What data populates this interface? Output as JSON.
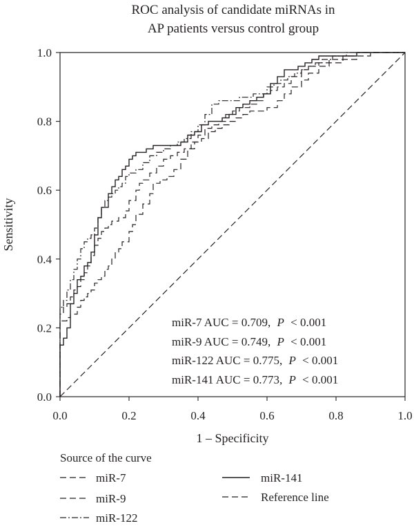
{
  "chart_data": {
    "type": "line",
    "title_lines": [
      "ROC analysis of candidate miRNAs in",
      "AP patients versus control group"
    ],
    "xlabel": "1 – Specificity",
    "ylabel": "Sensitivity",
    "xlim": [
      0,
      1
    ],
    "ylim": [
      0,
      1
    ],
    "xticks": [
      "0.0",
      "0.2",
      "0.4",
      "0.6",
      "0.8",
      "1.0"
    ],
    "yticks": [
      "0.0",
      "0.2",
      "0.4",
      "0.6",
      "0.8",
      "1.0"
    ],
    "grid": false,
    "legend_position": "bottom",
    "legend_title": "Source of the curve",
    "auc_annotations": [
      {
        "series": "miR-7",
        "auc": 0.709,
        "text": "miR-7 AUC = 0.709,",
        "p_text": "< 0.001"
      },
      {
        "series": "miR-9",
        "auc": 0.749,
        "text": "miR-9 AUC = 0.749,",
        "p_text": "< 0.001"
      },
      {
        "series": "miR-122",
        "auc": 0.775,
        "text": "miR-122 AUC = 0.775,",
        "p_text": "< 0.001"
      },
      {
        "series": "miR-141",
        "auc": 0.773,
        "text": "miR-141 AUC = 0.773,",
        "p_text": "< 0.001"
      }
    ],
    "p_label": "P",
    "series": [
      {
        "name": "miR-7",
        "style": "dashed",
        "points": [
          [
            0,
            0
          ],
          [
            0,
            0.2
          ],
          [
            0.01,
            0.22
          ],
          [
            0.02,
            0.22
          ],
          [
            0.03,
            0.23
          ],
          [
            0.05,
            0.24
          ],
          [
            0.06,
            0.26
          ],
          [
            0.07,
            0.28
          ],
          [
            0.08,
            0.29
          ],
          [
            0.09,
            0.3
          ],
          [
            0.1,
            0.31
          ],
          [
            0.11,
            0.33
          ],
          [
            0.12,
            0.34
          ],
          [
            0.13,
            0.35
          ],
          [
            0.14,
            0.37
          ],
          [
            0.15,
            0.38
          ],
          [
            0.16,
            0.4
          ],
          [
            0.17,
            0.42
          ],
          [
            0.18,
            0.43
          ],
          [
            0.2,
            0.45
          ],
          [
            0.21,
            0.48
          ],
          [
            0.22,
            0.5
          ],
          [
            0.24,
            0.53
          ],
          [
            0.26,
            0.56
          ],
          [
            0.27,
            0.59
          ],
          [
            0.29,
            0.62
          ],
          [
            0.31,
            0.63
          ],
          [
            0.33,
            0.64
          ],
          [
            0.35,
            0.66
          ],
          [
            0.37,
            0.69
          ],
          [
            0.39,
            0.72
          ],
          [
            0.41,
            0.74
          ],
          [
            0.43,
            0.75
          ],
          [
            0.45,
            0.77
          ],
          [
            0.47,
            0.78
          ],
          [
            0.49,
            0.79
          ],
          [
            0.51,
            0.8
          ],
          [
            0.53,
            0.81
          ],
          [
            0.55,
            0.82
          ],
          [
            0.57,
            0.83
          ],
          [
            0.6,
            0.83
          ],
          [
            0.63,
            0.84
          ],
          [
            0.65,
            0.86
          ],
          [
            0.67,
            0.88
          ],
          [
            0.7,
            0.9
          ],
          [
            0.72,
            0.92
          ],
          [
            0.75,
            0.94
          ],
          [
            0.78,
            0.96
          ],
          [
            0.82,
            0.97
          ],
          [
            0.86,
            0.98
          ],
          [
            0.9,
            0.99
          ],
          [
            0.95,
            1.0
          ],
          [
            1.0,
            1.0
          ]
        ]
      },
      {
        "name": "miR-9",
        "style": "dashed",
        "points": [
          [
            0,
            0
          ],
          [
            0,
            0.22
          ],
          [
            0.01,
            0.24
          ],
          [
            0.02,
            0.26
          ],
          [
            0.03,
            0.27
          ],
          [
            0.04,
            0.29
          ],
          [
            0.05,
            0.31
          ],
          [
            0.06,
            0.32
          ],
          [
            0.07,
            0.34
          ],
          [
            0.08,
            0.36
          ],
          [
            0.09,
            0.38
          ],
          [
            0.1,
            0.41
          ],
          [
            0.11,
            0.44
          ],
          [
            0.12,
            0.46
          ],
          [
            0.13,
            0.48
          ],
          [
            0.14,
            0.49
          ],
          [
            0.15,
            0.5
          ],
          [
            0.17,
            0.51
          ],
          [
            0.19,
            0.52
          ],
          [
            0.2,
            0.54
          ],
          [
            0.22,
            0.57
          ],
          [
            0.23,
            0.6
          ],
          [
            0.24,
            0.62
          ],
          [
            0.26,
            0.63
          ],
          [
            0.28,
            0.65
          ],
          [
            0.3,
            0.67
          ],
          [
            0.32,
            0.69
          ],
          [
            0.34,
            0.7
          ],
          [
            0.36,
            0.71
          ],
          [
            0.38,
            0.72
          ],
          [
            0.4,
            0.74
          ],
          [
            0.42,
            0.76
          ],
          [
            0.44,
            0.78
          ],
          [
            0.46,
            0.79
          ],
          [
            0.48,
            0.8
          ],
          [
            0.5,
            0.82
          ],
          [
            0.52,
            0.83
          ],
          [
            0.55,
            0.84
          ],
          [
            0.57,
            0.85
          ],
          [
            0.59,
            0.86
          ],
          [
            0.61,
            0.88
          ],
          [
            0.63,
            0.89
          ],
          [
            0.65,
            0.9
          ],
          [
            0.67,
            0.91
          ],
          [
            0.7,
            0.93
          ],
          [
            0.72,
            0.95
          ],
          [
            0.75,
            0.96
          ],
          [
            0.78,
            0.97
          ],
          [
            0.82,
            0.98
          ],
          [
            0.86,
            0.99
          ],
          [
            0.9,
            1.0
          ],
          [
            1.0,
            1.0
          ]
        ]
      },
      {
        "name": "miR-122",
        "style": "dashdot",
        "points": [
          [
            0,
            0
          ],
          [
            0,
            0.24
          ],
          [
            0.01,
            0.26
          ],
          [
            0.02,
            0.28
          ],
          [
            0.03,
            0.31
          ],
          [
            0.04,
            0.34
          ],
          [
            0.05,
            0.37
          ],
          [
            0.06,
            0.4
          ],
          [
            0.07,
            0.43
          ],
          [
            0.08,
            0.45
          ],
          [
            0.09,
            0.46
          ],
          [
            0.1,
            0.47
          ],
          [
            0.11,
            0.49
          ],
          [
            0.12,
            0.52
          ],
          [
            0.13,
            0.55
          ],
          [
            0.14,
            0.57
          ],
          [
            0.15,
            0.58
          ],
          [
            0.16,
            0.59
          ],
          [
            0.17,
            0.6
          ],
          [
            0.18,
            0.61
          ],
          [
            0.19,
            0.62
          ],
          [
            0.2,
            0.64
          ],
          [
            0.22,
            0.65
          ],
          [
            0.24,
            0.66
          ],
          [
            0.26,
            0.68
          ],
          [
            0.28,
            0.7
          ],
          [
            0.3,
            0.71
          ],
          [
            0.32,
            0.72
          ],
          [
            0.34,
            0.73
          ],
          [
            0.36,
            0.74
          ],
          [
            0.38,
            0.75
          ],
          [
            0.4,
            0.77
          ],
          [
            0.42,
            0.79
          ],
          [
            0.44,
            0.82
          ],
          [
            0.46,
            0.85
          ],
          [
            0.48,
            0.86
          ],
          [
            0.5,
            0.86
          ],
          [
            0.52,
            0.86
          ],
          [
            0.54,
            0.87
          ],
          [
            0.56,
            0.87
          ],
          [
            0.58,
            0.88
          ],
          [
            0.6,
            0.88
          ],
          [
            0.62,
            0.9
          ],
          [
            0.64,
            0.91
          ],
          [
            0.66,
            0.92
          ],
          [
            0.68,
            0.93
          ],
          [
            0.7,
            0.94
          ],
          [
            0.72,
            0.95
          ],
          [
            0.74,
            0.96
          ],
          [
            0.76,
            0.97
          ],
          [
            0.79,
            0.98
          ],
          [
            0.83,
            0.99
          ],
          [
            0.88,
            1.0
          ],
          [
            1.0,
            1.0
          ]
        ]
      },
      {
        "name": "miR-141",
        "style": "solid",
        "points": [
          [
            0,
            0
          ],
          [
            0,
            0.15
          ],
          [
            0.01,
            0.15
          ],
          [
            0.02,
            0.17
          ],
          [
            0.03,
            0.2
          ],
          [
            0.04,
            0.27
          ],
          [
            0.05,
            0.3
          ],
          [
            0.06,
            0.34
          ],
          [
            0.07,
            0.35
          ],
          [
            0.08,
            0.38
          ],
          [
            0.09,
            0.39
          ],
          [
            0.1,
            0.42
          ],
          [
            0.11,
            0.47
          ],
          [
            0.12,
            0.52
          ],
          [
            0.13,
            0.55
          ],
          [
            0.14,
            0.55
          ],
          [
            0.15,
            0.59
          ],
          [
            0.16,
            0.61
          ],
          [
            0.17,
            0.63
          ],
          [
            0.18,
            0.64
          ],
          [
            0.19,
            0.66
          ],
          [
            0.2,
            0.67
          ],
          [
            0.21,
            0.69
          ],
          [
            0.22,
            0.7
          ],
          [
            0.23,
            0.71
          ],
          [
            0.25,
            0.71
          ],
          [
            0.27,
            0.72
          ],
          [
            0.29,
            0.73
          ],
          [
            0.31,
            0.73
          ],
          [
            0.33,
            0.73
          ],
          [
            0.35,
            0.73
          ],
          [
            0.37,
            0.74
          ],
          [
            0.39,
            0.76
          ],
          [
            0.41,
            0.77
          ],
          [
            0.43,
            0.79
          ],
          [
            0.45,
            0.8
          ],
          [
            0.47,
            0.8
          ],
          [
            0.49,
            0.81
          ],
          [
            0.51,
            0.82
          ],
          [
            0.53,
            0.84
          ],
          [
            0.55,
            0.85
          ],
          [
            0.57,
            0.86
          ],
          [
            0.59,
            0.87
          ],
          [
            0.61,
            0.88
          ],
          [
            0.63,
            0.91
          ],
          [
            0.65,
            0.93
          ],
          [
            0.67,
            0.95
          ],
          [
            0.69,
            0.95
          ],
          [
            0.71,
            0.96
          ],
          [
            0.73,
            0.97
          ],
          [
            0.75,
            0.98
          ],
          [
            0.78,
            0.99
          ],
          [
            0.82,
            0.99
          ],
          [
            0.86,
            0.99
          ],
          [
            0.9,
            1.0
          ],
          [
            1.0,
            1.0
          ]
        ]
      },
      {
        "name": "Reference line",
        "style": "dashed",
        "points": [
          [
            0,
            0
          ],
          [
            1,
            1
          ]
        ]
      }
    ]
  }
}
